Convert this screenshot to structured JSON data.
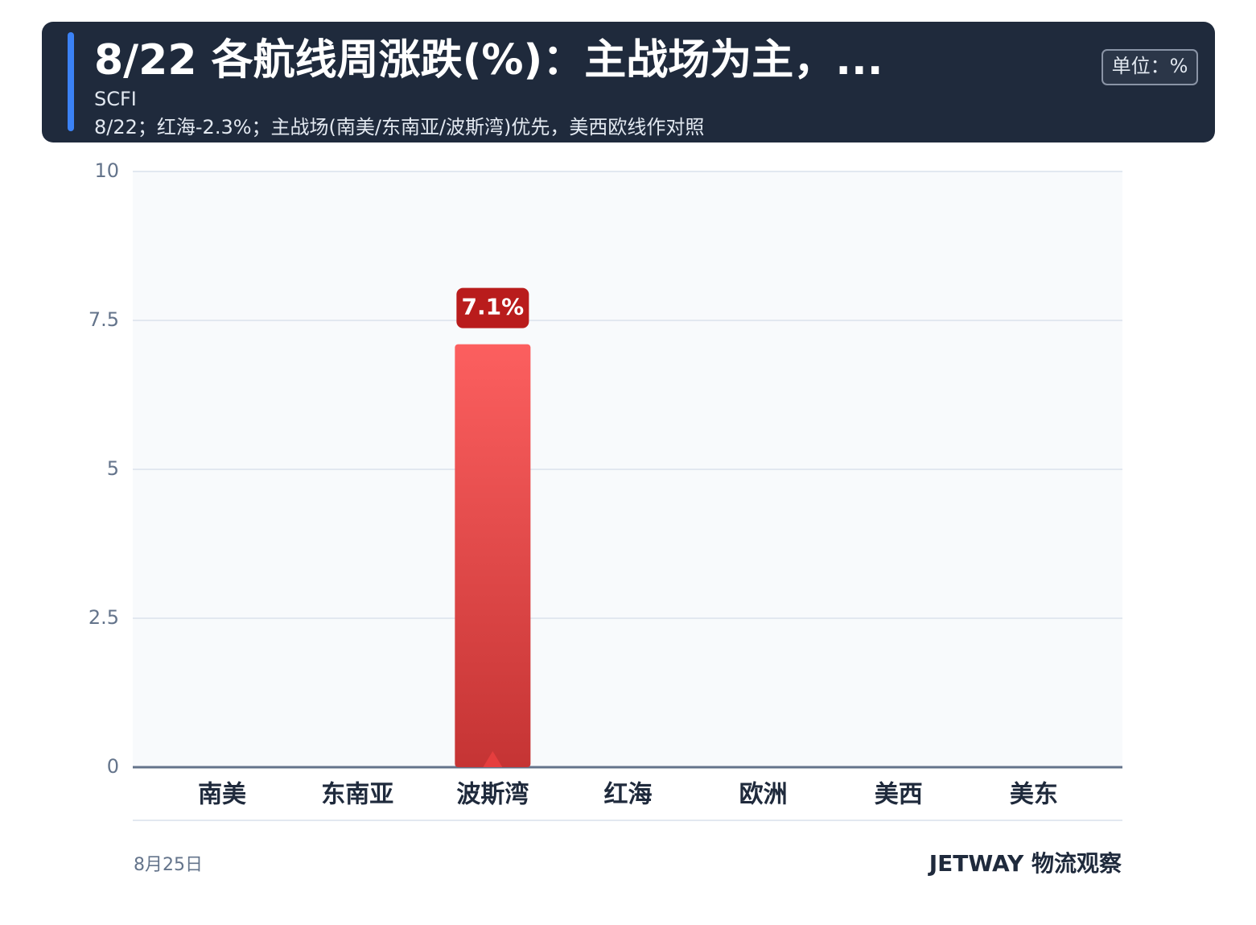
{
  "chart_data": {
    "type": "bar",
    "title": "8/22 各航线周涨跌(%)：主战场为主，...",
    "subtitle": "SCFI",
    "note": "8/22；红海-2.3%；主战场(南美/东南亚/波斯湾)优先，美西欧线作对照",
    "unit": "单位：%",
    "categories": [
      "南美",
      "东南亚",
      "波斯湾",
      "红海",
      "欧洲",
      "美西",
      "美东"
    ],
    "values": [
      null,
      null,
      7.1,
      null,
      null,
      null,
      null
    ],
    "value_labels": [
      null,
      null,
      "7.1%",
      null,
      null,
      null,
      null
    ],
    "color": "#e53e3e",
    "ylim": [
      0,
      10
    ],
    "yticks": [
      0,
      2.5,
      5,
      7.5,
      10
    ],
    "grid": true,
    "date": "8月25日",
    "brand": "JETWAY 物流观察"
  }
}
